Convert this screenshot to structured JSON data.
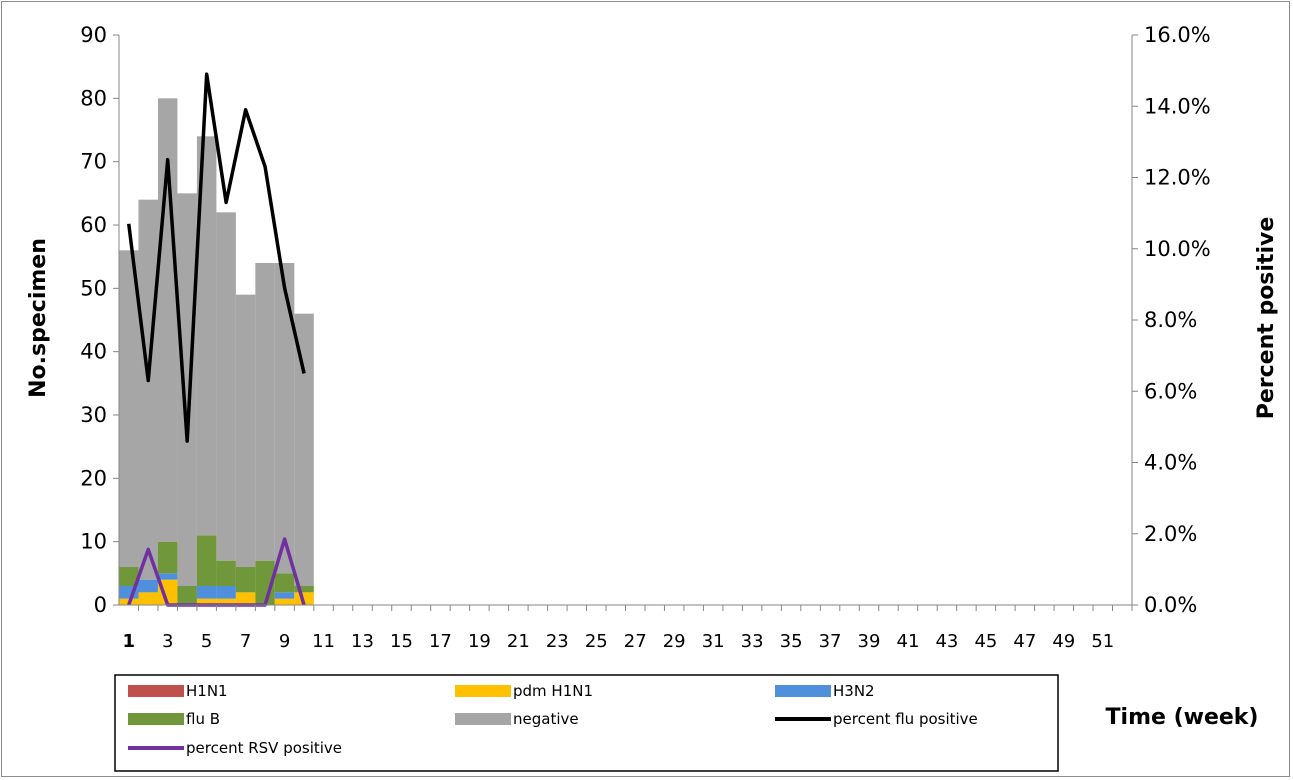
{
  "chart_data": {
    "type": "bar",
    "stacked": true,
    "xlabel": "Time (week)",
    "ylabel": "No.specimen",
    "y2label": "Percent positive",
    "ylim": [
      0,
      90
    ],
    "y2lim": [
      0,
      0.16
    ],
    "yticks": [
      "0",
      "10",
      "20",
      "30",
      "40",
      "50",
      "60",
      "70",
      "80",
      "90"
    ],
    "y2ticks": [
      "0.0%",
      "2.0%",
      "4.0%",
      "6.0%",
      "8.0%",
      "10.0%",
      "12.0%",
      "14.0%",
      "16.0%"
    ],
    "weeks": [
      1,
      2,
      3,
      4,
      5,
      6,
      7,
      8,
      9,
      10,
      11,
      12,
      13,
      14,
      15,
      16,
      17,
      18,
      19,
      20,
      21,
      22,
      23,
      24,
      25,
      26,
      27,
      28,
      29,
      30,
      31,
      32,
      33,
      34,
      35,
      36,
      37,
      38,
      39,
      40,
      41,
      42,
      43,
      44,
      45,
      46,
      47,
      48,
      49,
      50,
      51,
      52
    ],
    "xticklabels": [
      "1",
      "3",
      "5",
      "7",
      "9",
      "11",
      "13",
      "15",
      "17",
      "19",
      "21",
      "23",
      "25",
      "27",
      "29",
      "31",
      "33",
      "35",
      "37",
      "39",
      "41",
      "43",
      "45",
      "47",
      "49",
      "51"
    ],
    "series": [
      {
        "name": "H1N1",
        "color": "#c0504d",
        "values": [
          0,
          0,
          0,
          0,
          0,
          0,
          0,
          0,
          0,
          0
        ]
      },
      {
        "name": "pdm H1N1",
        "color": "#ffc000",
        "values": [
          1,
          2,
          4,
          0,
          1,
          1,
          2,
          0,
          1,
          2
        ]
      },
      {
        "name": "H3N2",
        "color": "#4f8fdc",
        "values": [
          2,
          2,
          1,
          0,
          2,
          2,
          0,
          0,
          1,
          0
        ]
      },
      {
        "name": "flu B",
        "color": "#70973a",
        "values": [
          3,
          0,
          5,
          3,
          8,
          4,
          4,
          7,
          3,
          1
        ]
      },
      {
        "name": "negative",
        "color": "#a6a6a6",
        "values": [
          50,
          60,
          70,
          62,
          63,
          55,
          43,
          47,
          49,
          43
        ]
      }
    ],
    "lines": [
      {
        "name": "percent flu positive",
        "color": "#000000",
        "axis": "y2",
        "values": [
          0.107,
          0.063,
          0.125,
          0.046,
          0.149,
          0.113,
          0.139,
          0.123,
          0.089,
          0.065
        ]
      },
      {
        "name": "percent  RSV positive",
        "color": "#7030a0",
        "axis": "y2",
        "values": [
          0,
          0.0156,
          0,
          0,
          0,
          0,
          0,
          0,
          0.0185,
          0
        ]
      }
    ],
    "legend": "bottom"
  },
  "legend_items": [
    {
      "label": "H1N1",
      "kind": "box",
      "color": "#c0504d"
    },
    {
      "label": "pdm H1N1",
      "kind": "box",
      "color": "#ffc000"
    },
    {
      "label": "H3N2",
      "kind": "box",
      "color": "#4f8fdc"
    },
    {
      "label": "flu B",
      "kind": "box",
      "color": "#70973a"
    },
    {
      "label": "negative",
      "kind": "box",
      "color": "#a6a6a6"
    },
    {
      "label": "percent flu positive",
      "kind": "line",
      "color": "#000000"
    },
    {
      "label": "percent  RSV positive",
      "kind": "line",
      "color": "#7030a0"
    }
  ]
}
